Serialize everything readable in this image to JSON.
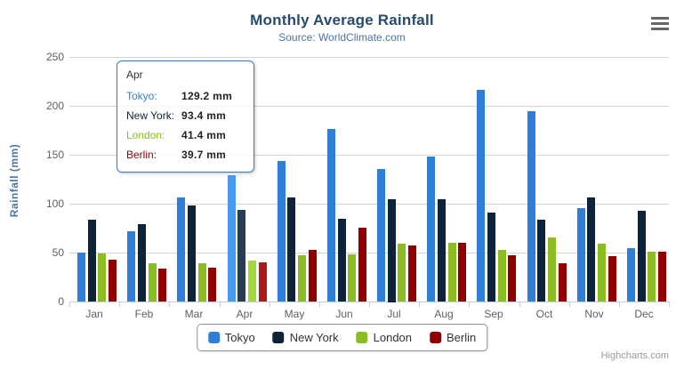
{
  "chart": {
    "credit": "Highcharts.com"
  },
  "chart_data": {
    "type": "bar",
    "title": "Monthly Average Rainfall",
    "subtitle": "Source: WorldClimate.com",
    "xlabel": "",
    "ylabel": "Rainfall (mm)",
    "ylim": [
      0,
      250
    ],
    "yticks": [
      0,
      50,
      100,
      150,
      200,
      250
    ],
    "grid": true,
    "legend_position": "bottom",
    "categories": [
      "Jan",
      "Feb",
      "Mar",
      "Apr",
      "May",
      "Jun",
      "Jul",
      "Aug",
      "Sep",
      "Oct",
      "Nov",
      "Dec"
    ],
    "hovered_category": "Apr",
    "series": [
      {
        "name": "Tokyo",
        "color": "#2f7ed8",
        "hover_color": "#4998f2",
        "values": [
          49.9,
          71.5,
          106.4,
          129.2,
          144.0,
          176.0,
          135.6,
          148.5,
          216.4,
          194.1,
          95.6,
          54.4
        ]
      },
      {
        "name": "New York",
        "color": "#0d233a",
        "hover_color": "#273d54",
        "values": [
          83.6,
          78.8,
          98.5,
          93.4,
          106.0,
          84.5,
          105.0,
          104.3,
          91.2,
          83.5,
          106.6,
          92.3
        ]
      },
      {
        "name": "London",
        "color": "#8bbc21",
        "hover_color": "#a5d63b",
        "values": [
          48.9,
          38.8,
          39.3,
          41.4,
          47.0,
          48.3,
          59.0,
          59.6,
          52.4,
          65.2,
          59.3,
          51.2
        ]
      },
      {
        "name": "Berlin",
        "color": "#910000",
        "hover_color": "#ab1a1a",
        "values": [
          42.4,
          33.2,
          34.5,
          39.7,
          52.6,
          75.5,
          57.4,
          60.4,
          47.6,
          39.1,
          46.8,
          51.1
        ]
      }
    ]
  },
  "tooltip": {
    "header": "Apr",
    "border_color": "#2f7ed8",
    "rows": [
      {
        "label": "Tokyo:",
        "value": "129.2 mm",
        "color": "#2f7ed8"
      },
      {
        "label": "New York:",
        "value": "93.4 mm",
        "color": "#0d233a"
      },
      {
        "label": "London:",
        "value": "41.4 mm",
        "color": "#8bbc21"
      },
      {
        "label": "Berlin:",
        "value": "39.7 mm",
        "color": "#910000"
      }
    ]
  },
  "legend": {
    "items": [
      {
        "label": "Tokyo",
        "color": "#2f7ed8"
      },
      {
        "label": "New York",
        "color": "#0d233a"
      },
      {
        "label": "London",
        "color": "#8bbc21"
      },
      {
        "label": "Berlin",
        "color": "#910000"
      }
    ]
  }
}
